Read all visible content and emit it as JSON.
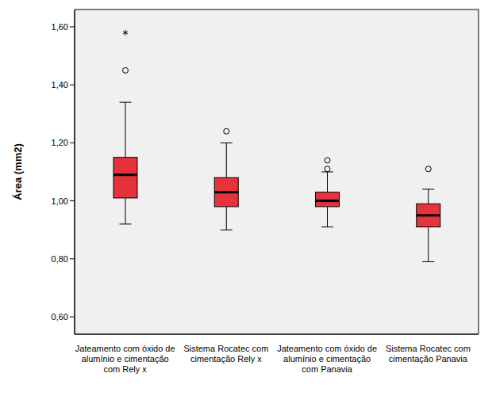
{
  "chart_data": {
    "type": "box",
    "y_label": "Área (mm2)",
    "categories": [
      "Jateamento com óxido de alumínio e cimentação com Rely x",
      "Sistema Rocatec com cimentação Rely x",
      "Jateamento com óxido de alumínio e cimentação com Panavia",
      "Sistema Rocatec com cimentação Panavia"
    ],
    "boxes": [
      {
        "whislo": 0.92,
        "q1": 1.01,
        "med": 1.09,
        "q3": 1.15,
        "whishi": 1.34,
        "outliers": [
          1.45
        ],
        "extremes": [
          1.58
        ]
      },
      {
        "whislo": 0.9,
        "q1": 0.98,
        "med": 1.03,
        "q3": 1.08,
        "whishi": 1.2,
        "outliers": [
          1.24
        ],
        "extremes": []
      },
      {
        "whislo": 0.91,
        "q1": 0.98,
        "med": 1.0,
        "q3": 1.03,
        "whishi": 1.1,
        "outliers": [
          1.11,
          1.14
        ],
        "extremes": []
      },
      {
        "whislo": 0.79,
        "q1": 0.91,
        "med": 0.95,
        "q3": 0.99,
        "whishi": 1.04,
        "outliers": [
          1.11
        ],
        "extremes": []
      }
    ],
    "color": "#e6333b",
    "ylim": [
      0.54,
      1.66
    ],
    "yticks": [
      {
        "value": 0.6,
        "label": "0,60"
      },
      {
        "value": 0.8,
        "label": "0,80"
      },
      {
        "value": 1.0,
        "label": "1,00"
      },
      {
        "value": 1.2,
        "label": "1,20"
      },
      {
        "value": 1.4,
        "label": "1,40"
      },
      {
        "value": 1.6,
        "label": "1,60"
      }
    ],
    "grid": false
  }
}
